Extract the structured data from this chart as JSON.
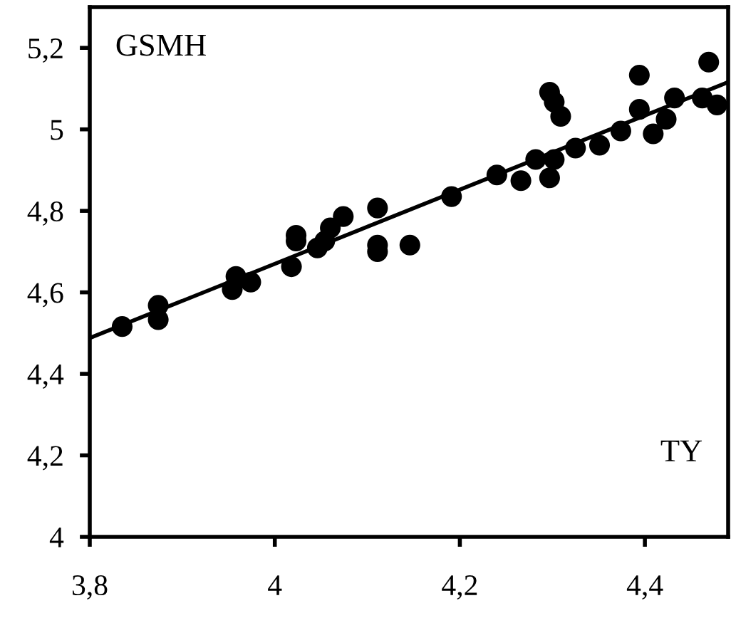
{
  "chart_data": {
    "type": "scatter",
    "annotations": [
      "GSMH",
      "TY"
    ],
    "xlim": [
      3.8,
      4.49
    ],
    "ylim": [
      4,
      5.3
    ],
    "xticks": [
      {
        "value": 3.8,
        "label": "3,8"
      },
      4,
      {
        "value": 4.2,
        "label": "4,2"
      },
      {
        "value": 4.4,
        "label": "4,4"
      }
    ],
    "yticks": [
      4,
      {
        "value": 4.2,
        "label": "4,2"
      },
      {
        "value": 4.4,
        "label": "4,4"
      },
      {
        "value": 4.6,
        "label": "4,6"
      },
      {
        "value": 4.8,
        "label": "4,8"
      },
      5,
      {
        "value": 5.2,
        "label": "5,2"
      }
    ],
    "grid": false,
    "legend": false,
    "series": [
      {
        "color": "#000000",
        "marker": "circle",
        "x": [
          3.835,
          3.874,
          3.874,
          3.954,
          3.958,
          3.974,
          4.018,
          4.023,
          4.023,
          4.046,
          4.054,
          4.06,
          4.074,
          4.111,
          4.111,
          4.111,
          4.146,
          4.191,
          4.24,
          4.266,
          4.282,
          4.297,
          4.302,
          4.297,
          4.302,
          4.309,
          4.325,
          4.351,
          4.374,
          4.394,
          4.394,
          4.409,
          4.423,
          4.432,
          4.462,
          4.469,
          4.478
        ],
        "values": [
          4.516,
          4.568,
          4.533,
          4.607,
          4.639,
          4.625,
          4.663,
          4.74,
          4.726,
          4.709,
          4.726,
          4.758,
          4.786,
          4.807,
          4.716,
          4.7,
          4.716,
          4.835,
          4.888,
          4.874,
          4.926,
          4.881,
          4.926,
          5.091,
          5.067,
          5.032,
          4.954,
          4.961,
          4.996,
          5.133,
          5.049,
          4.989,
          5.025,
          5.077,
          5.077,
          5.165,
          5.06
        ]
      },
      {
        "type": "line",
        "marker": "none",
        "color": "#000000",
        "x": [
          3.8,
          4.49
        ],
        "values": [
          4.488,
          5.116
        ]
      }
    ]
  }
}
